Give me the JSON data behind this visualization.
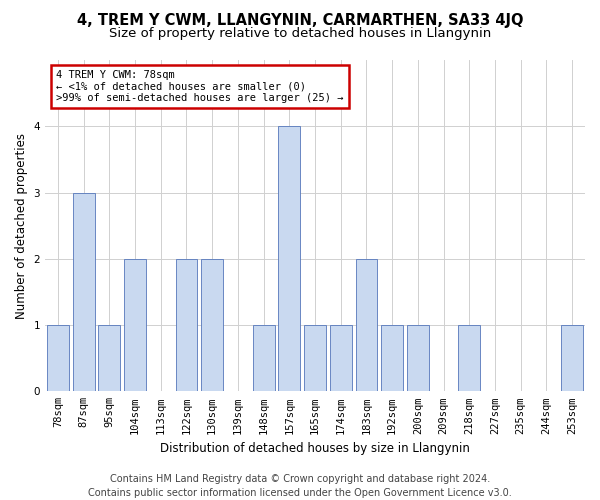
{
  "title": "4, TREM Y CWM, LLANGYNIN, CARMARTHEN, SA33 4JQ",
  "subtitle": "Size of property relative to detached houses in Llangynin",
  "xlabel": "Distribution of detached houses by size in Llangynin",
  "ylabel": "Number of detached properties",
  "categories": [
    "78sqm",
    "87sqm",
    "95sqm",
    "104sqm",
    "113sqm",
    "122sqm",
    "130sqm",
    "139sqm",
    "148sqm",
    "157sqm",
    "165sqm",
    "174sqm",
    "183sqm",
    "192sqm",
    "200sqm",
    "209sqm",
    "218sqm",
    "227sqm",
    "235sqm",
    "244sqm",
    "253sqm"
  ],
  "values": [
    1,
    3,
    1,
    2,
    0,
    2,
    2,
    0,
    1,
    4,
    1,
    1,
    2,
    1,
    1,
    0,
    1,
    0,
    0,
    0,
    1
  ],
  "bar_color": "#c9d9f0",
  "bar_edge_color": "#5577bb",
  "ylim": [
    0,
    5
  ],
  "yticks": [
    0,
    1,
    2,
    3,
    4
  ],
  "annotation_text": "4 TREM Y CWM: 78sqm\n← <1% of detached houses are smaller (0)\n>99% of semi-detached houses are larger (25) →",
  "annotation_box_color": "#ffffff",
  "annotation_box_edge_color": "#cc0000",
  "footer_line1": "Contains HM Land Registry data © Crown copyright and database right 2024.",
  "footer_line2": "Contains public sector information licensed under the Open Government Licence v3.0.",
  "background_color": "#ffffff",
  "grid_color": "#d0d0d0",
  "title_fontsize": 10.5,
  "subtitle_fontsize": 9.5,
  "axis_label_fontsize": 8.5,
  "tick_fontsize": 7.5,
  "annotation_fontsize": 7.5,
  "footer_fontsize": 7
}
